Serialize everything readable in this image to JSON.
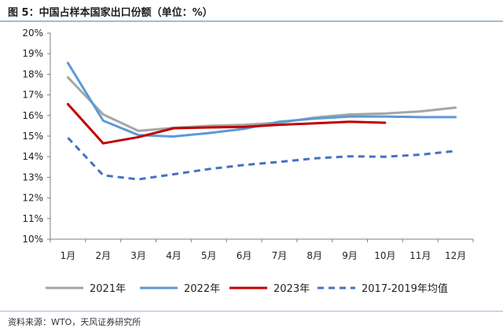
{
  "figure_title": "图 5：中国占样本国家出口份额（单位：%）",
  "source_text": "资料来源：WTO，天风证券研究所",
  "colors": {
    "y2021": "#a6a6a6",
    "y2022": "#5b9bd5",
    "y2023": "#c00000",
    "avg": "#4472c4"
  },
  "chart_data": {
    "type": "line",
    "title": "中国占样本国家出口份额（单位：%）",
    "categories": [
      "1月",
      "2月",
      "3月",
      "4月",
      "5月",
      "6月",
      "7月",
      "8月",
      "9月",
      "10月",
      "11月",
      "12月"
    ],
    "y_ticks": [
      "10%",
      "11%",
      "12%",
      "13%",
      "14%",
      "15%",
      "16%",
      "17%",
      "18%",
      "19%",
      "20%"
    ],
    "ylim": [
      10,
      20
    ],
    "grid": false,
    "legend_position": "bottom",
    "series": [
      {
        "name": "2021年",
        "values": [
          17.85,
          16.05,
          15.25,
          15.4,
          15.5,
          15.55,
          15.65,
          15.9,
          16.05,
          16.1,
          16.2,
          16.38
        ]
      },
      {
        "name": "2022年",
        "values": [
          18.55,
          15.75,
          15.05,
          14.98,
          15.15,
          15.35,
          15.7,
          15.85,
          15.95,
          15.95,
          15.92,
          15.92
        ]
      },
      {
        "name": "2023年",
        "values": [
          16.55,
          14.65,
          14.95,
          15.38,
          15.42,
          15.45,
          15.55,
          15.62,
          15.7,
          15.65,
          null,
          null
        ]
      },
      {
        "name": "2017-2019年均值",
        "values": [
          14.92,
          13.1,
          12.9,
          13.15,
          13.4,
          13.6,
          13.75,
          13.92,
          14.02,
          14.0,
          14.1,
          14.28
        ]
      }
    ]
  }
}
